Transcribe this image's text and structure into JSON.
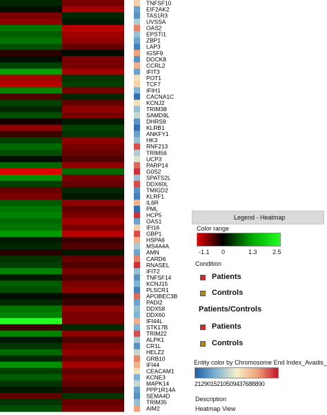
{
  "chart_data": {
    "type": "heatmap",
    "title": "",
    "columns": [
      "Patients",
      "Controls"
    ],
    "genes": [
      "TNFSF10",
      "EIF2AK2",
      "TAS1R3",
      "UVSSA",
      "OAS2",
      "EPSTI1",
      "ZBP1",
      "LAP3",
      "IGSF9",
      "DOCK8",
      "CCRL2",
      "IFIT3",
      "POT1",
      "TCF7",
      "IFIH1",
      "CACNA1C",
      "KCNJ2",
      "TRIM38",
      "SAMD9L",
      "DHRS9",
      "KLRB1",
      "ANKFY1",
      "HK3",
      "RNF213",
      "TRIM56",
      "UCP3",
      "PARP14",
      "G0S2",
      "SPATS2L",
      "DDX60L",
      "TMIGD2",
      "KLRF1",
      "IL6R",
      "PML",
      "HCP5",
      "OAS1",
      "IFI16",
      "GBP1",
      "HSPA6",
      "MS4A4A",
      "AMN",
      "CARD6",
      "RNASEL",
      "IFIT2",
      "TNFSF14",
      "KCNJ15",
      "PLSCR1",
      "APOBEC3B",
      "PADI2",
      "DDX58",
      "DDX60",
      "IFI44L",
      "STK17B",
      "TRIM22",
      "ALPK1",
      "CR1L",
      "HELZ2",
      "GRB10",
      "IFI44",
      "CEACAM1",
      "KCNE3",
      "MAPK14",
      "PPP1R14A",
      "SEMA4D",
      "TRIM35",
      "AIM2"
    ],
    "patients_values": [
      0.3,
      0.1,
      -0.6,
      -0.7,
      0.9,
      0.7,
      0.9,
      0.6,
      -0.2,
      0.1,
      0.5,
      1.2,
      -0.8,
      -0.9,
      1.0,
      -0.4,
      0.5,
      0.3,
      0.6,
      -0.1,
      -0.7,
      -0.3,
      0.5,
      0.8,
      0.6,
      0.1,
      0.8,
      -1.1,
      1.1,
      0.5,
      -0.5,
      -0.6,
      0.7,
      0.9,
      1.0,
      0.8,
      0.9,
      1.2,
      0.2,
      0.3,
      -0.2,
      0.4,
      0.5,
      1.0,
      0.2,
      0.7,
      0.6,
      0.1,
      0.3,
      0.9,
      1.0,
      2.5,
      -0.3,
      1.0,
      0.2,
      0.4,
      0.8,
      0.3,
      1.1,
      0.5,
      0.7,
      0.4,
      0.2,
      -0.5,
      0.4,
      0.6
    ],
    "controls_values": [
      -0.6,
      -0.8,
      0.3,
      0.2,
      -0.9,
      -0.8,
      -0.7,
      -0.5,
      0.1,
      -0.6,
      -0.6,
      -0.8,
      0.4,
      0.5,
      -0.6,
      0.3,
      -0.5,
      -0.7,
      -0.6,
      0.2,
      0.5,
      0.4,
      -0.7,
      -0.6,
      -0.5,
      -0.4,
      -0.7,
      0.8,
      -0.6,
      -0.5,
      0.3,
      0.2,
      -0.7,
      -0.5,
      -0.6,
      -0.8,
      -0.6,
      -0.9,
      -0.3,
      -0.4,
      0.2,
      -0.5,
      -0.4,
      -0.6,
      -0.4,
      -0.6,
      -0.7,
      -0.2,
      -0.3,
      -0.7,
      -0.6,
      -0.6,
      0.3,
      -0.7,
      -0.4,
      -0.6,
      -0.7,
      -0.5,
      -0.8,
      -0.5,
      -0.6,
      -0.5,
      -0.3,
      0.4,
      -0.5,
      -0.6
    ],
    "chromosome_index": [
      0.6,
      0.2,
      0.15,
      0.35,
      0.8,
      0.3,
      0.2,
      0.1,
      0.75,
      0.15,
      0.7,
      0.2,
      0.55,
      0.6,
      0.25,
      0.05,
      0.55,
      0.3,
      0.4,
      0.15,
      0.05,
      0.2,
      0.3,
      0.9,
      0.35,
      0.45,
      0.85,
      0.95,
      0.3,
      0.9,
      0.15,
      0.1,
      0.7,
      0.05,
      0.95,
      0.2,
      0.6,
      0.9,
      0.7,
      0.35,
      0.2,
      0.8,
      0.95,
      0.3,
      0.15,
      0.25,
      0.1,
      0.85,
      0.2,
      0.3,
      0.25,
      0.7,
      0.25,
      0.9,
      0.35,
      0.15,
      0.4,
      0.8,
      0.7,
      0.55,
      0.25,
      0.4,
      0.2,
      0.15,
      0.3,
      0.75
    ],
    "color_range": {
      "min": -1.1,
      "mid": 0,
      "high": 1.3,
      "max": 2.5,
      "ticks": [
        "-1.1",
        "0",
        "1.3",
        "2.5"
      ]
    },
    "legend": {
      "header": "Legend - Heatmap",
      "color_range_label": "Color range",
      "condition_label": "Condition",
      "patients_label": "Patients",
      "controls_label": "Controls",
      "group_label": "Patients/Controls",
      "entity_color_label": "Entity color by Chromosome End Index_Avadis_",
      "entity_ticks_text": "2129015210509437688890",
      "description_label": "Description",
      "view_label": "Heatmap View"
    }
  },
  "colors": {
    "patients": "#d42a2a",
    "controls": "#b08a16"
  }
}
